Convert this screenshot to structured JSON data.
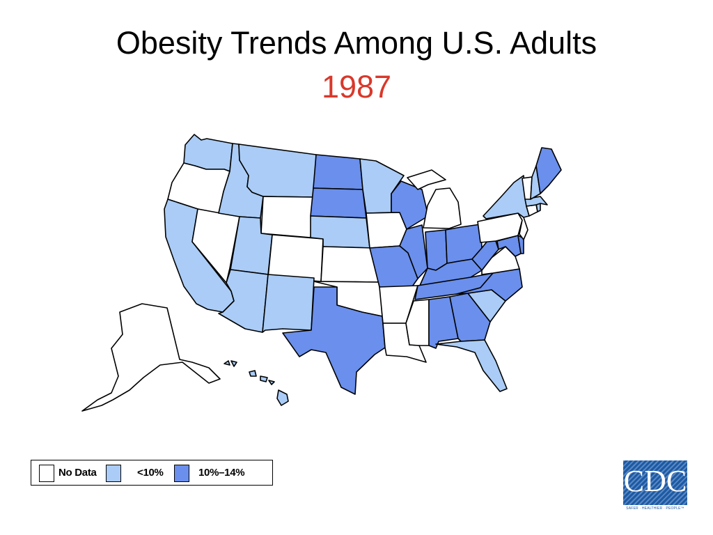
{
  "title": "Obesity Trends Among U.S. Adults",
  "year": "1987",
  "colors": {
    "no_data": "#ffffff",
    "lt10": "#aaccf6",
    "10_14": "#6a8fec",
    "title": "#000000",
    "year": "#d9382b",
    "cdc_blue": "#1c5aa6"
  },
  "legend": [
    {
      "key": "no_data",
      "label": "No Data"
    },
    {
      "key": "lt10",
      "label": "<10%"
    },
    {
      "key": "10_14",
      "label": "10%–14%"
    }
  ],
  "states": {
    "WA": "lt10",
    "OR": "no_data",
    "CA": "lt10",
    "NV": "no_data",
    "ID": "lt10",
    "MT": "lt10",
    "WY": "no_data",
    "UT": "lt10",
    "AZ": "lt10",
    "CO": "no_data",
    "NM": "lt10",
    "ND": "10_14",
    "SD": "10_14",
    "NE": "lt10",
    "KS": "no_data",
    "OK": "no_data",
    "TX": "10_14",
    "MN": "lt10",
    "IA": "no_data",
    "MO": "10_14",
    "AR": "no_data",
    "LA": "no_data",
    "WI": "10_14",
    "IL": "10_14",
    "MI": "no_data",
    "IN": "10_14",
    "OH": "10_14",
    "KY": "10_14",
    "TN": "10_14",
    "MS": "no_data",
    "AL": "10_14",
    "GA": "10_14",
    "FL": "lt10",
    "SC": "lt10",
    "NC": "10_14",
    "VA": "no_data",
    "WV": "10_14",
    "MD": "10_14",
    "DE": "10_14",
    "PA": "no_data",
    "NJ": "no_data",
    "NY": "lt10",
    "CT": "no_data",
    "RI": "lt10",
    "MA": "lt10",
    "VT": "no_data",
    "NH": "lt10",
    "ME": "10_14",
    "AK": "no_data",
    "HI": "lt10"
  },
  "logo": {
    "text": "CDC",
    "tagline": "SAFER · HEALTHIER · PEOPLE™"
  }
}
